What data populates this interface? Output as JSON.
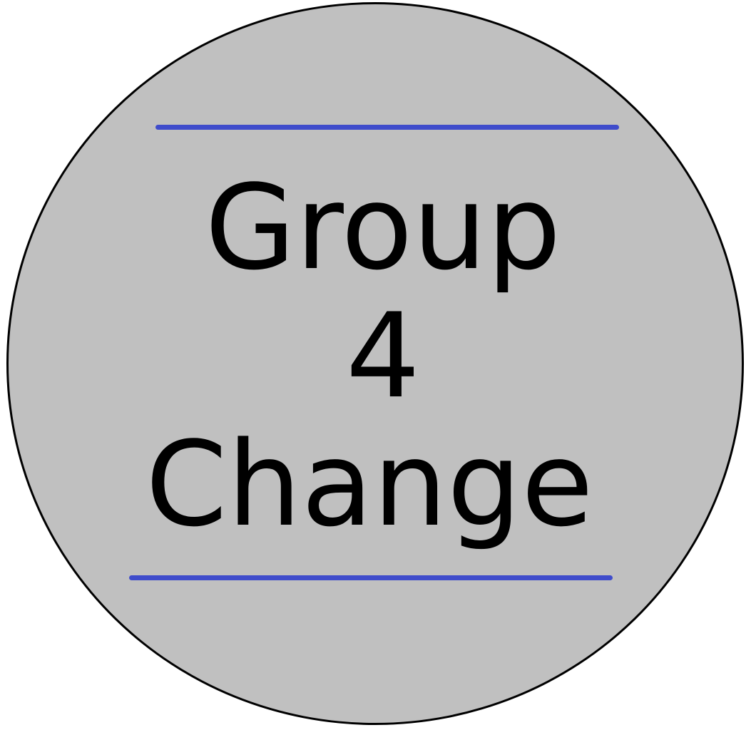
{
  "logo": {
    "line_1": "Group",
    "line_2": "4",
    "line_3": "Change"
  },
  "colors": {
    "badge_fill": "#c0c0c0",
    "badge_outline": "#000000",
    "rule_color": "#3f4ccb",
    "text_color": "#000000"
  }
}
